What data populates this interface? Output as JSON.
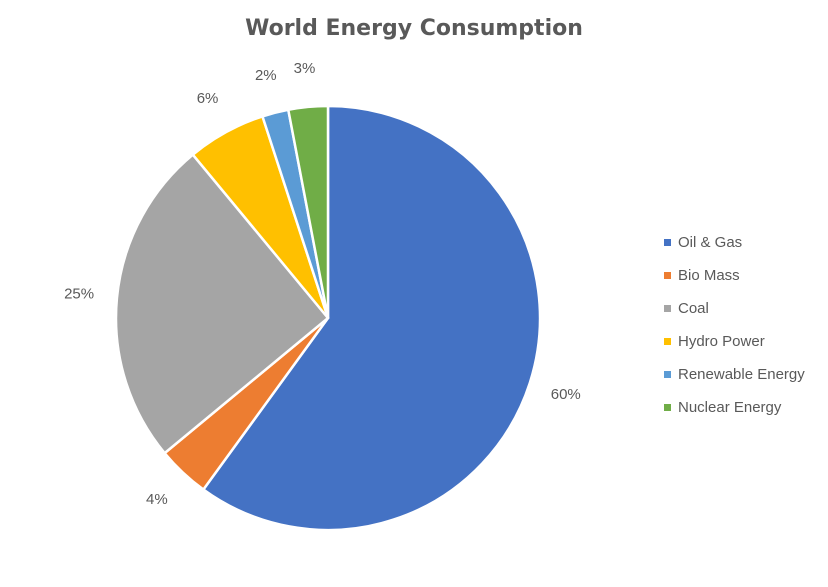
{
  "chart_data": {
    "type": "pie",
    "title": "World Energy Consumption",
    "categories": [
      "Oil & Gas",
      "Bio Mass",
      "Coal",
      "Hydro Power",
      "Renewable Energy",
      "Nuclear Energy"
    ],
    "values": [
      60,
      4,
      25,
      6,
      2,
      3
    ],
    "labels": [
      "60%",
      "4%",
      "25%",
      "6%",
      "2%",
      "3%"
    ],
    "colors": [
      "#4472C4",
      "#ED7D31",
      "#A5A5A5",
      "#FFC000",
      "#5B9BD5",
      "#70AD47"
    ],
    "legend_position": "right"
  }
}
